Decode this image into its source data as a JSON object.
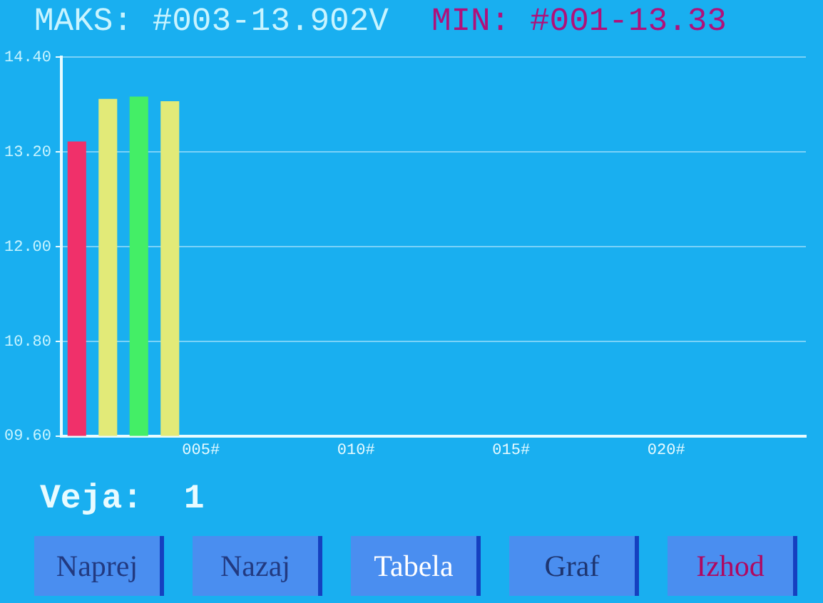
{
  "chart_data": {
    "type": "bar",
    "title": "MAKS: #003-13.902V",
    "subtitle": "MIN: #001-13.33",
    "categories": [
      null,
      null,
      null,
      null,
      "005#",
      null,
      null,
      null,
      null,
      "010#",
      null,
      null,
      null,
      null,
      "015#",
      null,
      null,
      null,
      null,
      "020#",
      null,
      null,
      null,
      null
    ],
    "values": [
      13.33,
      13.87,
      13.9,
      13.84,
      null,
      null,
      null,
      null,
      null,
      null,
      null,
      null,
      null,
      null,
      null,
      null,
      null,
      null,
      null,
      null,
      null,
      null,
      null,
      null
    ],
    "colors": [
      "#f0306a",
      "#e2ea78",
      "#44ee66",
      "#e2ea78",
      null,
      null,
      null,
      null,
      null,
      null,
      null,
      null,
      null,
      null,
      null,
      null,
      null,
      null,
      null,
      null,
      null,
      null,
      null,
      null
    ],
    "ylim": [
      9.6,
      14.4
    ],
    "yticks": [
      {
        "value": 9.6,
        "label": "09.60"
      },
      {
        "value": 10.8,
        "label": "10.80"
      },
      {
        "value": 12,
        "label": "12.00"
      },
      {
        "value": 13.2,
        "label": "13.20"
      },
      {
        "value": 14.4,
        "label": "14.40"
      }
    ],
    "grid": "y",
    "annotations": [
      "Veja:  1",
      "Naprej",
      "Nazaj",
      "Tabela",
      "Graf",
      "Izhod"
    ]
  }
}
